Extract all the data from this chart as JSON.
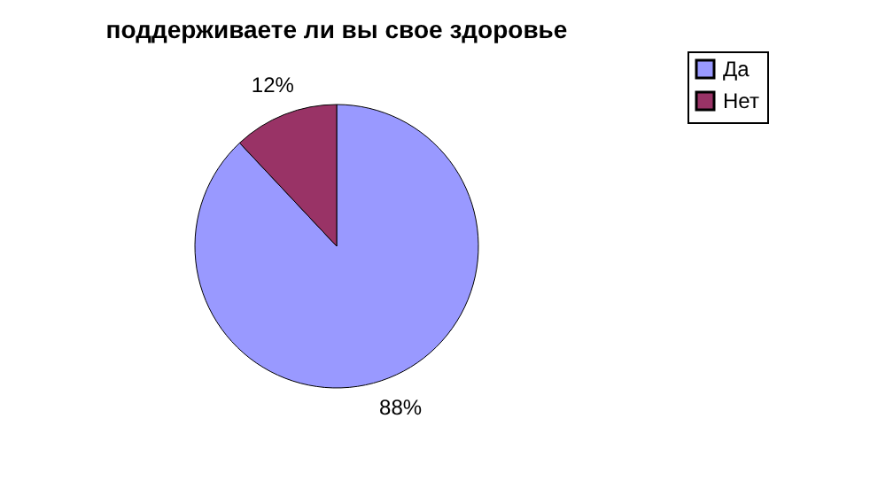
{
  "chart_data": {
    "type": "pie",
    "title": "поддерживаете ли вы свое здоровье",
    "categories": [
      "Да",
      "Нет"
    ],
    "values": [
      88,
      12
    ],
    "colors": [
      "#9999ff",
      "#993366"
    ],
    "value_labels": [
      "88%",
      "12%"
    ],
    "legend": "right"
  }
}
